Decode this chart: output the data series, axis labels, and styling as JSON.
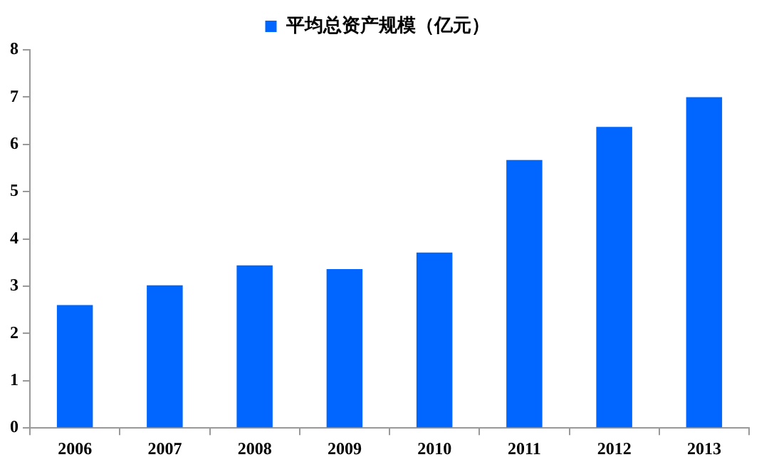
{
  "chart_data": {
    "type": "bar",
    "categories": [
      "2006",
      "2007",
      "2008",
      "2009",
      "2010",
      "2011",
      "2012",
      "2013"
    ],
    "series": [
      {
        "name": "平均总资产规模（亿元）",
        "color": "#0066ff",
        "values": [
          2.6,
          3.02,
          3.44,
          3.36,
          3.71,
          5.67,
          6.37,
          7.0
        ]
      }
    ],
    "ylim": [
      0,
      8
    ],
    "yticks": [
      0,
      1,
      2,
      3,
      4,
      5,
      6,
      7,
      8
    ],
    "grid": false,
    "legend": "top"
  }
}
